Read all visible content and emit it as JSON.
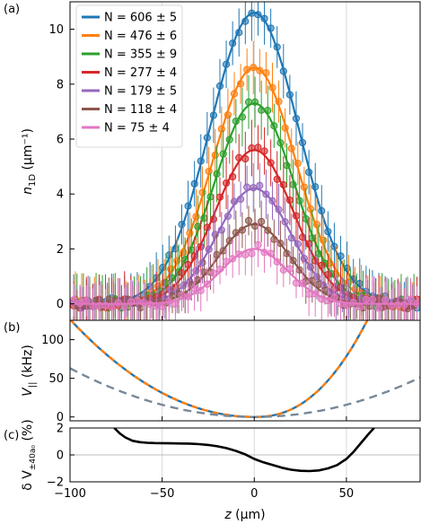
{
  "chart_data": [
    {
      "type": "scatter",
      "panel_label": "(a)",
      "xlabel": "",
      "ylabel": {
        "prefix": "n",
        "subscript": "1D",
        "suffix": " (µm⁻¹)"
      },
      "xlim": [
        -100,
        90
      ],
      "ylim": [
        -0.6,
        11
      ],
      "yticks": [
        0,
        2,
        4,
        6,
        8,
        10
      ],
      "xticks": [
        -100,
        -50,
        0,
        50
      ],
      "legend_position": "upper-left",
      "series": [
        {
          "name": "N = 606 ± 5",
          "color": "#1f77b4",
          "peak": 10.6,
          "width": 24,
          "error": 0.7
        },
        {
          "name": "N = 476 ± 6",
          "color": "#ff7f0e",
          "peak": 8.6,
          "width": 22.5,
          "error": 0.7
        },
        {
          "name": "N = 355 ± 9",
          "color": "#2ca02c",
          "peak": 7.3,
          "width": 21.5,
          "error": 0.8
        },
        {
          "name": "N = 277 ± 4",
          "color": "#d62728",
          "peak": 5.6,
          "width": 21,
          "error": 0.7
        },
        {
          "name": "N = 179 ± 5",
          "color": "#9467bd",
          "peak": 4.2,
          "width": 20,
          "error": 0.6
        },
        {
          "name": "N = 118 ± 4",
          "color": "#8c564b",
          "peak": 2.9,
          "width": 19,
          "error": 0.5
        },
        {
          "name": "N = 75 ± 4",
          "color": "#e377c2",
          "peak": 2.0,
          "width": 18,
          "error": 0.5
        }
      ]
    },
    {
      "type": "line",
      "panel_label": "(b)",
      "ylabel": {
        "prefix": "V",
        "subscript": "||",
        "suffix": " (kHz)"
      },
      "xlim": [
        -100,
        90
      ],
      "ylim": [
        -5,
        125
      ],
      "yticks": [
        0,
        50,
        100
      ],
      "xticks": [
        -100,
        -50,
        0,
        50
      ],
      "series": [
        {
          "color": "#1f77b4",
          "style": "solid",
          "shape": "measured"
        },
        {
          "color": "#ff7f0e",
          "style": "dashed",
          "shape": "measured"
        },
        {
          "color": "#778899",
          "style": "dashed",
          "shape": "harmonic"
        }
      ]
    },
    {
      "type": "line",
      "panel_label": "(c)",
      "ylabel": {
        "prefix": "δ V",
        "subscript": "±40a₀",
        "suffix": " (%)"
      },
      "xlabel": {
        "italic": "z",
        "rest": " (µm)"
      },
      "xlim": [
        -100,
        90
      ],
      "ylim": [
        -2,
        2
      ],
      "yticks": [
        -2,
        0,
        2
      ],
      "xticks": [
        -100,
        -50,
        0,
        50
      ],
      "series": [
        {
          "color": "#000000",
          "x": [
            -76,
            -73,
            -70,
            -66,
            -62,
            -58,
            -54,
            -50,
            -45,
            -40,
            -35,
            -30,
            -25,
            -20,
            -15,
            -10,
            -5,
            0,
            5,
            10,
            15,
            20,
            25,
            30,
            35,
            40,
            45,
            50,
            54,
            58,
            62,
            65
          ],
          "y": [
            2.0,
            1.6,
            1.3,
            1.05,
            0.95,
            0.9,
            0.88,
            0.87,
            0.86,
            0.85,
            0.84,
            0.8,
            0.74,
            0.64,
            0.5,
            0.3,
            0.05,
            -0.3,
            -0.55,
            -0.75,
            -0.95,
            -1.1,
            -1.18,
            -1.2,
            -1.15,
            -1.0,
            -0.75,
            -0.3,
            0.25,
            0.9,
            1.55,
            2.0
          ]
        }
      ]
    }
  ]
}
